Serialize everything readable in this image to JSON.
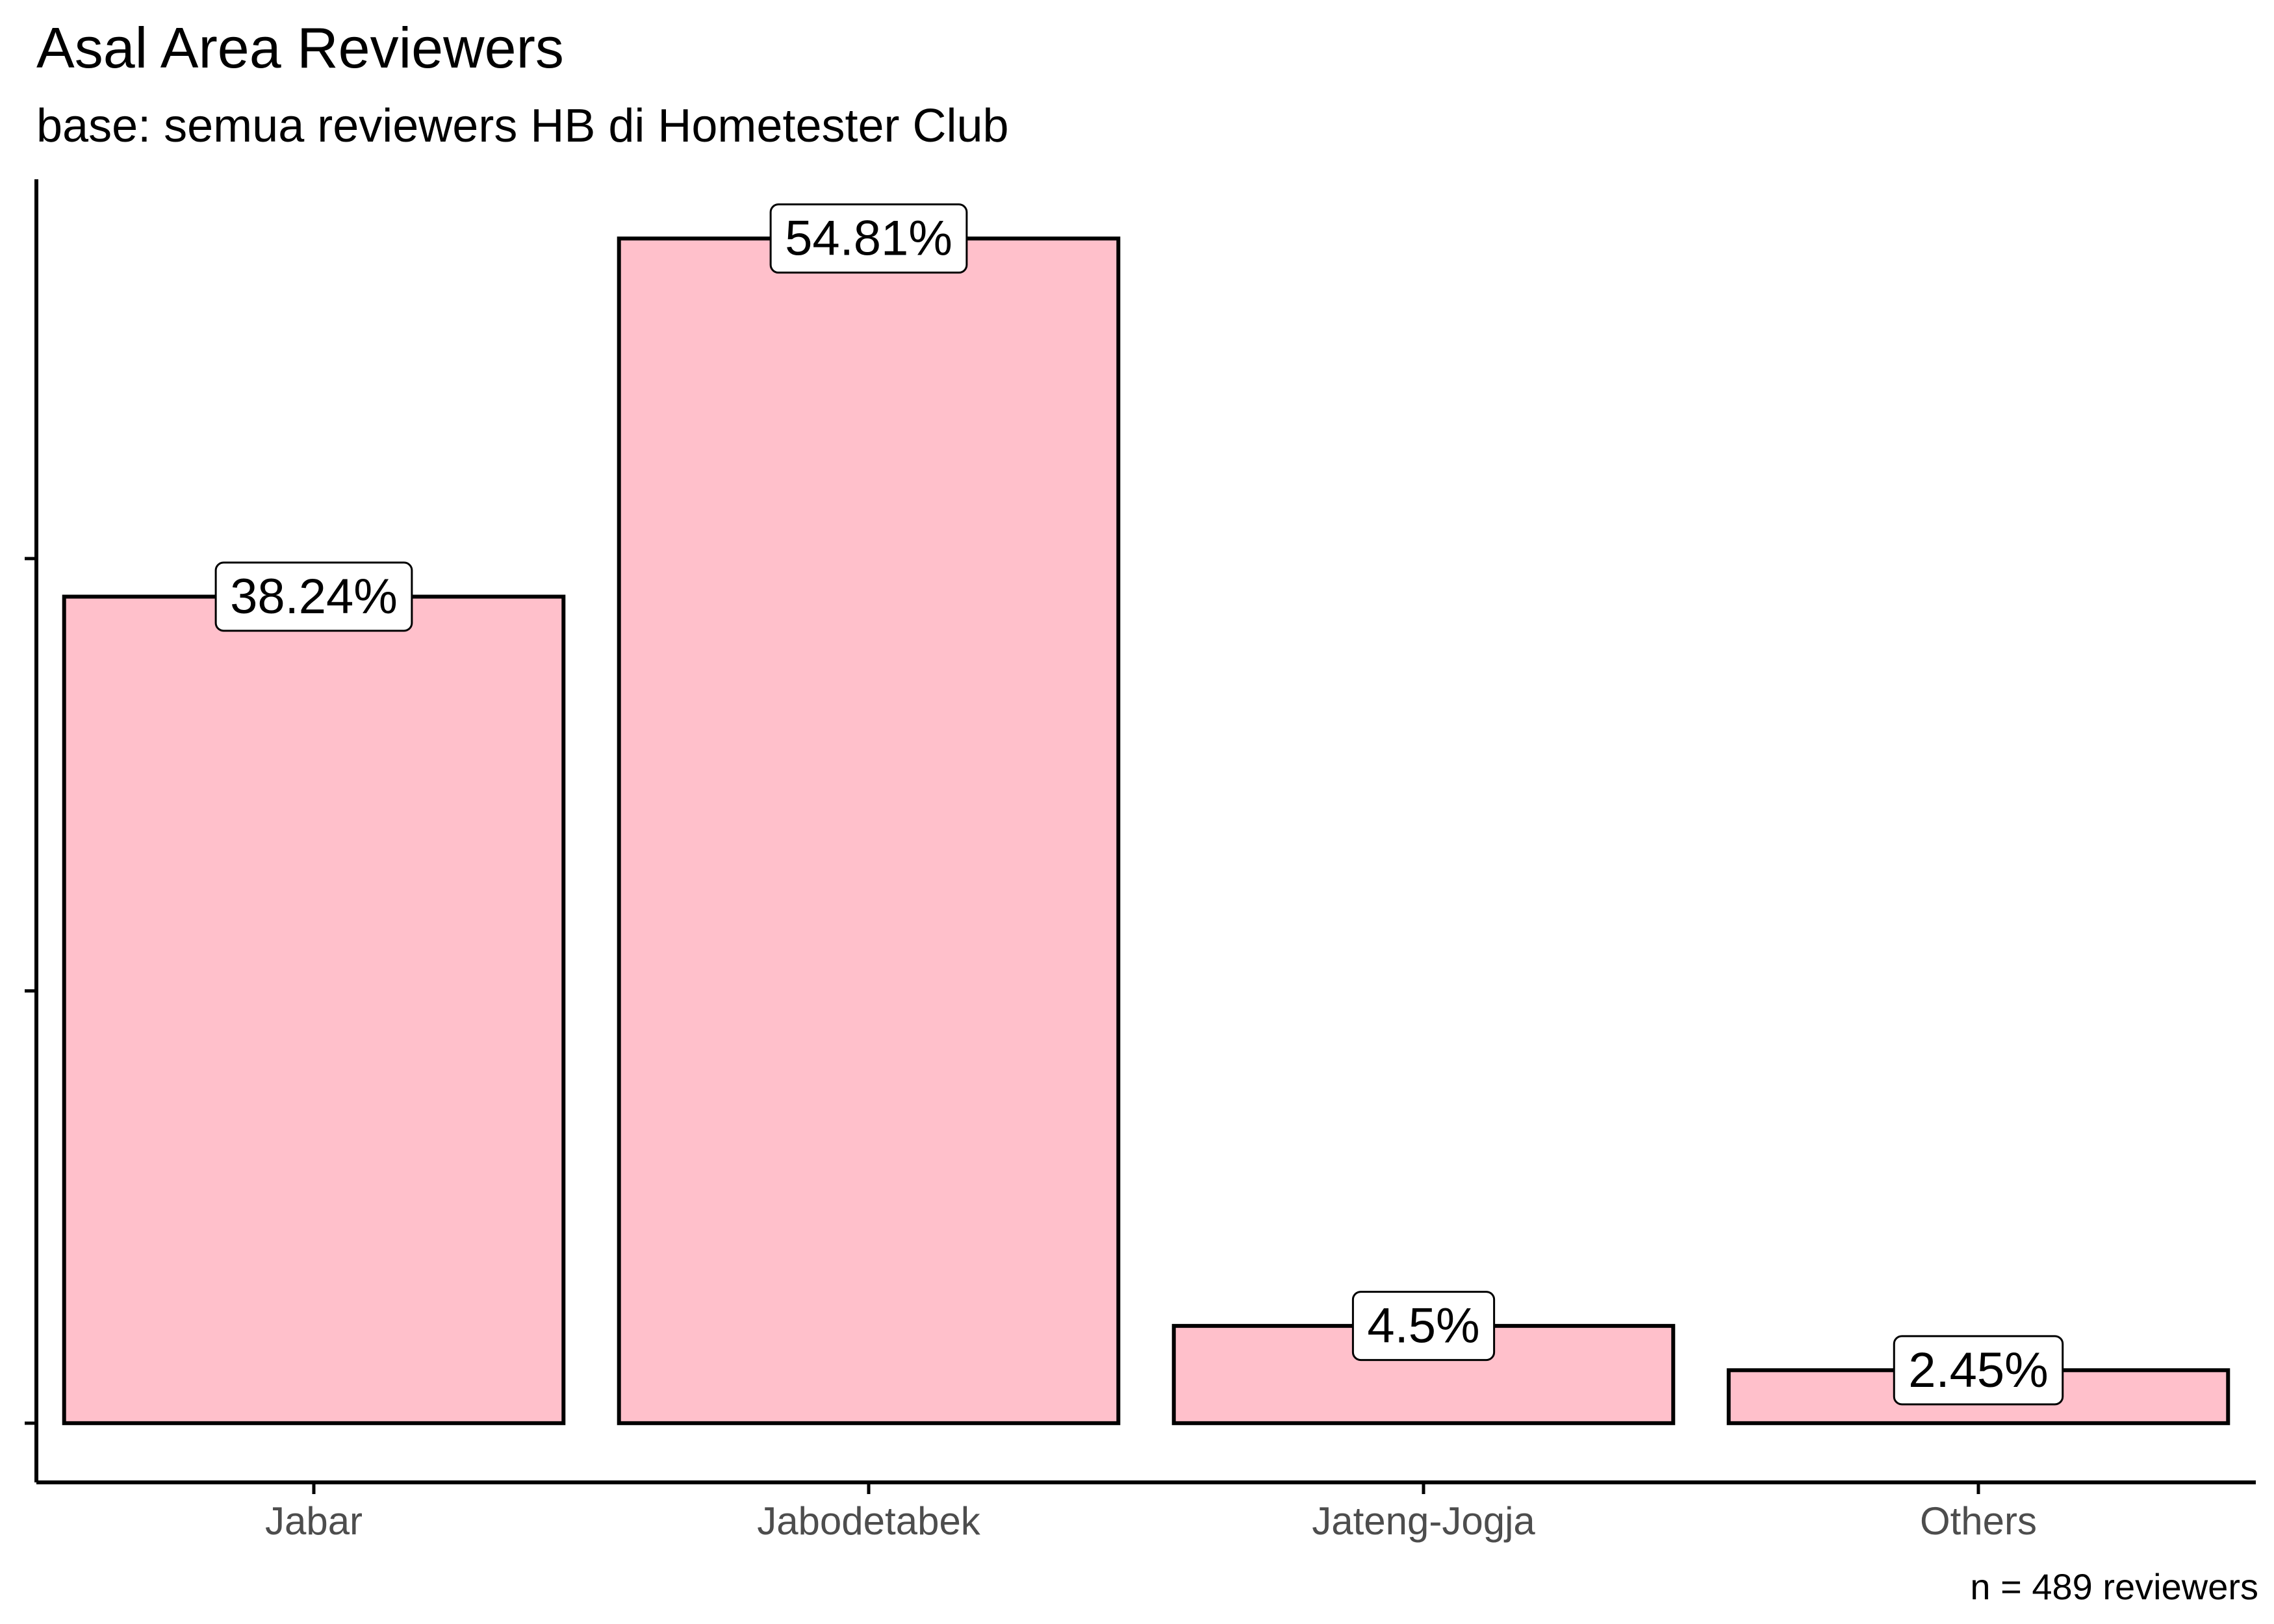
{
  "chart_data": {
    "type": "bar",
    "title": "Asal Area Reviewers",
    "subtitle": "base: semua reviewers HB di Hometester Club",
    "caption": "n = 489 reviewers",
    "categories": [
      "Jabar",
      "Jabodetabek",
      "Jateng-Jogja",
      "Others"
    ],
    "values": [
      38.24,
      54.81,
      4.5,
      2.45
    ],
    "data_labels": [
      "38.24%",
      "54.81%",
      "4.5%",
      "2.45%"
    ],
    "xlabel": "",
    "ylabel": "",
    "ylim": [
      -2.74,
      57.55
    ],
    "y_ticks": [
      0,
      20,
      40
    ],
    "y_tick_labels_shown": false,
    "grid": false,
    "legend": "none",
    "colors": {
      "bar_fill": "#FFC0CB",
      "bar_outline": "#000000",
      "label_box_fill": "#FFFFFF",
      "axis": "#000000",
      "tick_text": "#4D4D4D"
    }
  }
}
